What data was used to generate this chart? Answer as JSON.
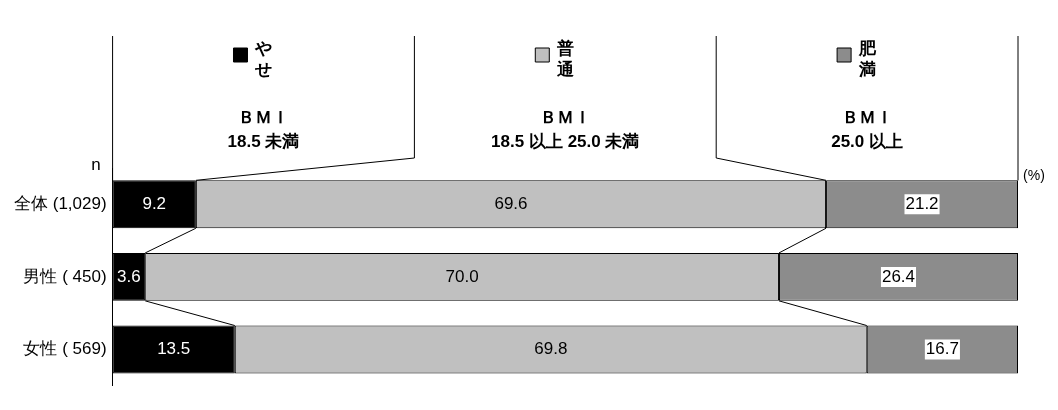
{
  "chart_data": {
    "type": "bar",
    "orientation": "horizontal",
    "stacked": true,
    "categories": [
      "全体 (1,029)",
      "男性 ( 450)",
      "女性 ( 569)"
    ],
    "series": [
      {
        "name": "やせ",
        "color": "#000000",
        "values": [
          9.2,
          3.6,
          13.5
        ],
        "value_labels": [
          "9.2",
          "3.6",
          "13.5"
        ]
      },
      {
        "name": "普通",
        "color": "#c0c0c0",
        "values": [
          69.6,
          70.0,
          69.8
        ],
        "value_labels": [
          "69.6",
          "70.0",
          "69.8"
        ]
      },
      {
        "name": "肥満",
        "color": "#8c8c8c",
        "values": [
          21.2,
          26.4,
          16.7
        ],
        "value_labels": [
          "21.2",
          "26.4",
          "16.7"
        ]
      }
    ],
    "xlim": [
      0,
      100
    ],
    "legend": "top",
    "tick_labels": "y",
    "grid": false,
    "annotations": [
      "n",
      "(%)",
      "ＢＭＩ\n18.5 未満",
      "ＢＭＩ\n18.5 以上 25.0 未満",
      "ＢＭＩ\n25.0 以上"
    ]
  }
}
